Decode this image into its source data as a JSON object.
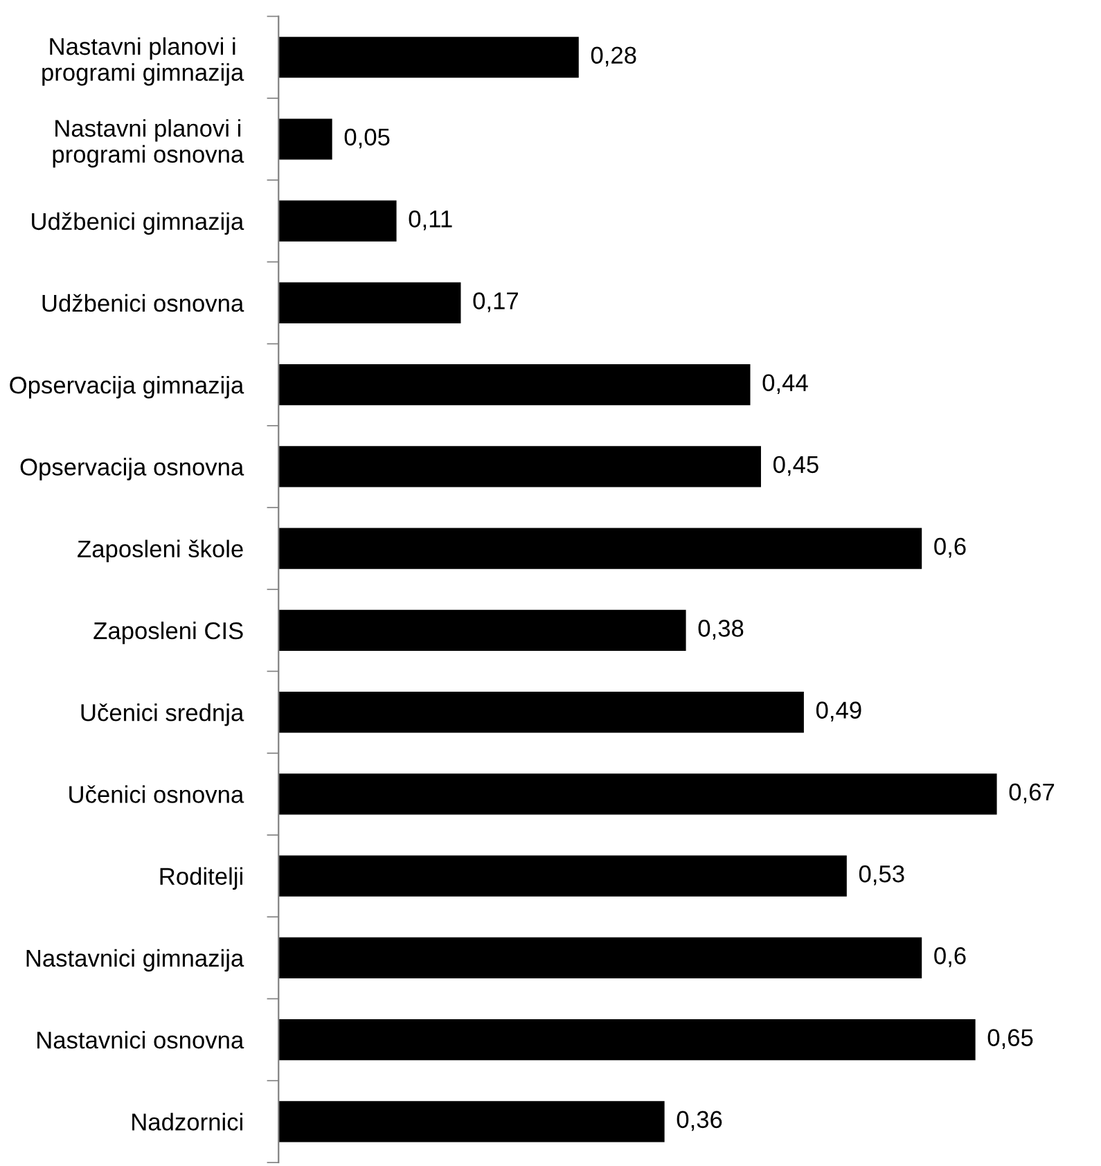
{
  "chart_data": {
    "type": "bar",
    "orientation": "horizontal",
    "categories": [
      "Nastavni planovi i\nprogrami gimnazija",
      "Nastavni planovi i\nprogrami osnovna",
      "Udžbenici gimnazija",
      "Udžbenici osnovna",
      "Opservacija gimnazija",
      "Opservacija osnovna",
      "Zaposleni škole",
      "Zaposleni CIS",
      "Učenici srednja",
      "Učenici osnovna",
      "Roditelji",
      "Nastavnici gimnazija",
      "Nastavnici osnovna",
      "Nadzornici"
    ],
    "values": [
      0.28,
      0.05,
      0.11,
      0.17,
      0.44,
      0.45,
      0.6,
      0.38,
      0.49,
      0.67,
      0.53,
      0.6,
      0.65,
      0.36
    ],
    "value_labels": [
      "0,28",
      "0,05",
      "0,11",
      "0,17",
      "0,44",
      "0,45",
      "0,6",
      "0,38",
      "0,49",
      "0,67",
      "0,53",
      "0,6",
      "0,65",
      "0,36"
    ],
    "color": "#000000",
    "grid": false,
    "legend": false,
    "tick_labels": "y"
  }
}
